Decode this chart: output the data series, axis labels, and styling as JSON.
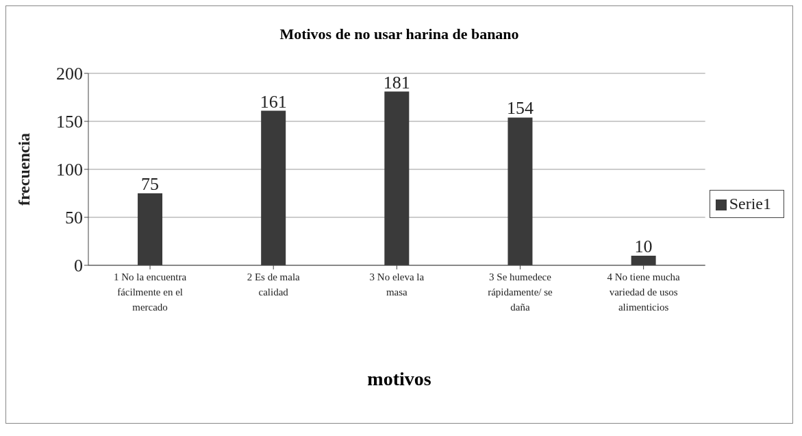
{
  "chart_data": {
    "type": "bar",
    "title": "Motivos de no usar harina de banano",
    "xlabel": "motivos",
    "ylabel": "frecuencia",
    "categories": [
      "1 No la encuentra fácilmente en el mercado",
      "2 Es de mala calidad",
      "3 No eleva la masa",
      "3 Se humedece rápidamente/ se daña",
      "4 No tiene mucha variedad de usos alimenticios"
    ],
    "series": [
      {
        "name": "Serie1",
        "color": "#3a3a3a",
        "values": [
          75,
          161,
          181,
          154,
          10
        ]
      }
    ],
    "ylim": [
      0,
      200
    ],
    "yticks": [
      0,
      50,
      100,
      150,
      200
    ],
    "grid": "y",
    "legend": "right",
    "data_labels": true
  }
}
